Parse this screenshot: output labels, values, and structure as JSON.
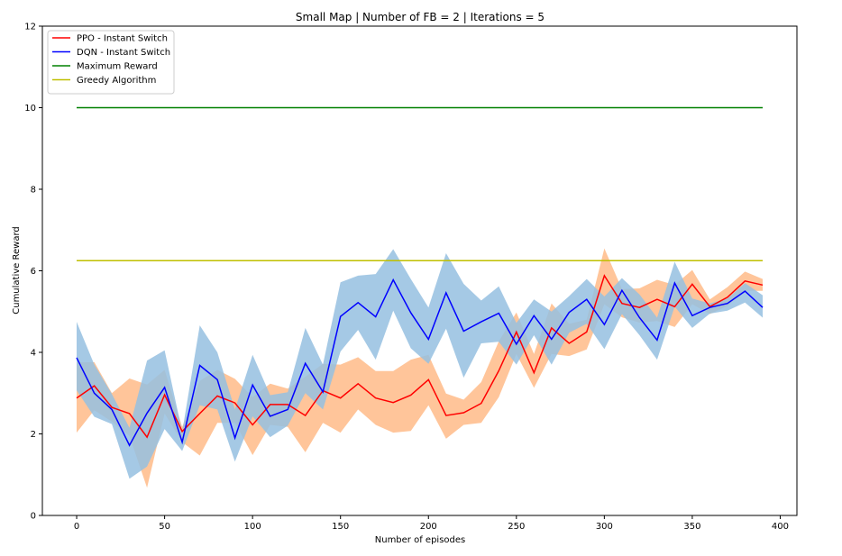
{
  "chart_data": {
    "type": "line",
    "title": "Small Map | Number of FB = 2 | Iterations = 5",
    "xlabel": "Number of episodes",
    "ylabel": "Cumulative Reward",
    "xlim": [
      -19.5,
      409.5
    ],
    "ylim": [
      0,
      12
    ],
    "xticks": [
      0,
      50,
      100,
      150,
      200,
      250,
      300,
      350,
      400
    ],
    "yticks": [
      0,
      2,
      4,
      6,
      8,
      10,
      12
    ],
    "grid": false,
    "legend_position": "top-left",
    "x": [
      0,
      10,
      20,
      30,
      40,
      50,
      60,
      70,
      80,
      90,
      100,
      110,
      120,
      130,
      140,
      150,
      160,
      170,
      180,
      190,
      200,
      210,
      220,
      230,
      240,
      250,
      260,
      270,
      280,
      290,
      300,
      310,
      320,
      330,
      340,
      350,
      360,
      370,
      380,
      390
    ],
    "series": [
      {
        "name": "PPO - Instant Switch",
        "color": "#ff0000",
        "band_color": "#ffbb88",
        "values": [
          2.88,
          3.18,
          2.65,
          2.5,
          1.92,
          2.96,
          2.06,
          2.5,
          2.93,
          2.76,
          2.22,
          2.72,
          2.72,
          2.45,
          3.06,
          2.88,
          3.23,
          2.88,
          2.77,
          2.95,
          3.33,
          2.45,
          2.52,
          2.75,
          3.55,
          4.5,
          3.5,
          4.6,
          4.22,
          4.5,
          5.88,
          5.2,
          5.1,
          5.3,
          5.12,
          5.67,
          5.12,
          5.35,
          5.75,
          5.65
        ],
        "lower": [
          2.03,
          2.58,
          2.3,
          1.95,
          0.68,
          2.5,
          1.8,
          1.47,
          2.27,
          2.27,
          1.48,
          2.22,
          2.17,
          1.55,
          2.27,
          2.03,
          2.6,
          2.22,
          2.03,
          2.07,
          2.7,
          1.88,
          2.22,
          2.27,
          2.9,
          3.96,
          3.13,
          3.96,
          3.91,
          4.07,
          5.18,
          4.86,
          4.73,
          4.77,
          4.62,
          5.18,
          4.94,
          5.14,
          5.51,
          5.51
        ],
        "upper": [
          3.75,
          3.76,
          3.0,
          3.36,
          3.21,
          3.57,
          2.17,
          3.3,
          3.57,
          3.35,
          2.9,
          3.23,
          3.11,
          3.4,
          3.72,
          3.7,
          3.88,
          3.54,
          3.54,
          3.82,
          3.94,
          2.99,
          2.84,
          3.27,
          4.27,
          4.98,
          3.96,
          5.2,
          4.7,
          4.8,
          6.55,
          5.55,
          5.57,
          5.78,
          5.65,
          6.02,
          5.3,
          5.6,
          5.98,
          5.8
        ]
      },
      {
        "name": "DQN - Instant Switch",
        "color": "#0000ff",
        "band_color": "#95c0e0",
        "values": [
          3.87,
          3.0,
          2.6,
          1.72,
          2.51,
          3.14,
          1.8,
          3.68,
          3.33,
          1.9,
          3.2,
          2.43,
          2.6,
          3.73,
          3.03,
          4.88,
          5.22,
          4.87,
          5.78,
          4.97,
          4.32,
          5.46,
          4.52,
          4.75,
          4.96,
          4.2,
          4.9,
          4.32,
          4.98,
          5.3,
          4.68,
          5.52,
          4.85,
          4.3,
          5.7,
          4.9,
          5.1,
          5.2,
          5.5,
          5.1
        ],
        "lower": [
          3.07,
          2.42,
          2.24,
          0.9,
          1.2,
          2.12,
          1.58,
          2.7,
          2.6,
          1.32,
          2.43,
          1.92,
          2.2,
          3.0,
          2.6,
          4.02,
          4.55,
          3.82,
          5.02,
          4.1,
          3.72,
          4.58,
          3.38,
          4.22,
          4.26,
          3.7,
          4.42,
          3.7,
          4.48,
          4.7,
          4.08,
          4.94,
          4.42,
          3.82,
          5.12,
          4.6,
          4.95,
          5.02,
          5.22,
          4.85
        ],
        "upper": [
          4.75,
          3.7,
          2.98,
          2.15,
          3.8,
          4.05,
          2.05,
          4.66,
          4.0,
          2.6,
          3.94,
          2.95,
          3.02,
          4.6,
          3.7,
          5.72,
          5.88,
          5.92,
          6.53,
          5.8,
          5.1,
          6.43,
          5.68,
          5.27,
          5.62,
          4.72,
          5.3,
          5.0,
          5.38,
          5.8,
          5.37,
          5.82,
          5.42,
          4.85,
          6.22,
          5.32,
          5.2,
          5.32,
          5.7,
          5.4
        ]
      },
      {
        "name": "Maximum Reward",
        "color": "#008000",
        "values": [
          10,
          10,
          10,
          10,
          10,
          10,
          10,
          10,
          10,
          10,
          10,
          10,
          10,
          10,
          10,
          10,
          10,
          10,
          10,
          10,
          10,
          10,
          10,
          10,
          10,
          10,
          10,
          10,
          10,
          10,
          10,
          10,
          10,
          10,
          10,
          10,
          10,
          10,
          10,
          10
        ]
      },
      {
        "name": "Greedy Algorithm",
        "color": "#bfbf00",
        "values": [
          6.25,
          6.25,
          6.25,
          6.25,
          6.25,
          6.25,
          6.25,
          6.25,
          6.25,
          6.25,
          6.25,
          6.25,
          6.25,
          6.25,
          6.25,
          6.25,
          6.25,
          6.25,
          6.25,
          6.25,
          6.25,
          6.25,
          6.25,
          6.25,
          6.25,
          6.25,
          6.25,
          6.25,
          6.25,
          6.25,
          6.25,
          6.25,
          6.25,
          6.25,
          6.25,
          6.25,
          6.25,
          6.25,
          6.25,
          6.25
        ]
      }
    ]
  }
}
